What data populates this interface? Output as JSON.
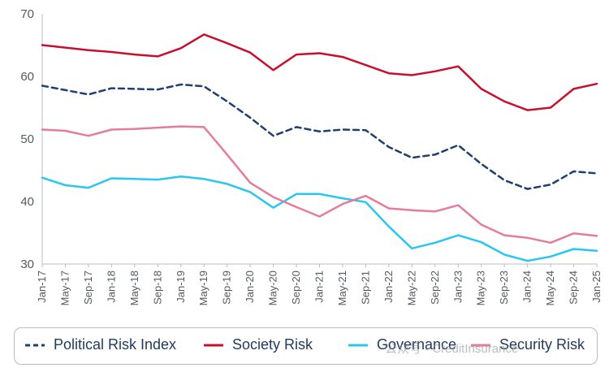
{
  "chart_data": {
    "type": "line",
    "title": "",
    "xlabel": "",
    "ylabel": "",
    "ylim": [
      30,
      70
    ],
    "yticks": [
      30,
      40,
      50,
      60,
      70
    ],
    "grid": false,
    "legend_position": "bottom",
    "xlim": [
      "2017-01",
      "2025-01"
    ],
    "xtick_labels": [
      "Jan-17",
      "May-17",
      "Sep-17",
      "Jan-18",
      "May-18",
      "Sep-18",
      "Jan-19",
      "May-19",
      "Sep-19",
      "Jan-20",
      "May-20",
      "Sep-20",
      "Jan-21",
      "May-21",
      "Sep-21",
      "Jan-22",
      "May-22",
      "Sep-22",
      "Jan-23",
      "May-23",
      "Sep-23",
      "Jan-24",
      "May-24",
      "Sep-24",
      "Jan-25"
    ],
    "x": [
      "2017-01",
      "2017-05",
      "2017-09",
      "2018-01",
      "2018-05",
      "2018-09",
      "2019-01",
      "2019-05",
      "2019-09",
      "2020-01",
      "2020-05",
      "2020-09",
      "2021-01",
      "2021-05",
      "2021-09",
      "2022-01",
      "2022-05",
      "2022-09",
      "2023-01",
      "2023-05",
      "2023-09",
      "2024-01",
      "2024-05",
      "2024-09",
      "2025-01"
    ],
    "series": [
      {
        "name": "Political Risk Index",
        "color": "#1f3f6e",
        "dash": "dashed",
        "values": [
          58.5,
          57.8,
          57.1,
          58.1,
          58.0,
          57.9,
          58.7,
          58.4,
          56.0,
          53.4,
          50.5,
          51.9,
          51.2,
          51.5,
          51.4,
          48.7,
          47.0,
          47.5,
          49.0,
          46.0,
          43.4,
          42.0,
          42.7,
          44.8,
          44.5
        ]
      },
      {
        "name": "Society Risk",
        "color": "#c8102e",
        "dash": "solid",
        "values": [
          65.0,
          64.6,
          64.2,
          63.9,
          63.5,
          63.2,
          64.5,
          66.7,
          65.3,
          63.8,
          61.0,
          63.5,
          63.7,
          63.1,
          61.8,
          60.5,
          60.2,
          60.8,
          61.6,
          58.0,
          56.0,
          54.6,
          55.0,
          58.0,
          58.8
        ]
      },
      {
        "name": "Governance",
        "color": "#29c6f2",
        "dash": "solid",
        "values": [
          43.8,
          42.6,
          42.2,
          43.7,
          43.6,
          43.5,
          44.0,
          43.6,
          42.8,
          41.5,
          39.0,
          41.2,
          41.2,
          40.5,
          39.9,
          36.0,
          32.5,
          33.4,
          34.6,
          33.5,
          31.5,
          30.5,
          31.2,
          32.4,
          32.1
        ]
      },
      {
        "name": "Security Risk",
        "color": "#e57c9a",
        "dash": "solid",
        "values": [
          51.5,
          51.3,
          50.5,
          51.5,
          51.6,
          51.8,
          52.0,
          51.9,
          47.5,
          43.0,
          40.7,
          39.1,
          37.6,
          39.6,
          40.9,
          38.9,
          38.6,
          38.4,
          39.4,
          36.3,
          34.6,
          34.2,
          33.4,
          34.9,
          34.5
        ]
      }
    ]
  },
  "watermark": "公众号 · CreditInsurance"
}
